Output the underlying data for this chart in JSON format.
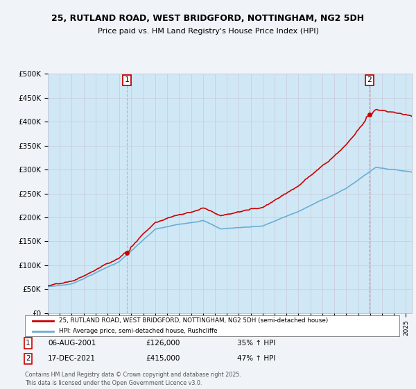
{
  "title_line1": "25, RUTLAND ROAD, WEST BRIDGFORD, NOTTINGHAM, NG2 5DH",
  "title_line2": "Price paid vs. HM Land Registry's House Price Index (HPI)",
  "ylim": [
    0,
    500000
  ],
  "yticks": [
    0,
    50000,
    100000,
    150000,
    200000,
    250000,
    300000,
    350000,
    400000,
    450000,
    500000
  ],
  "ytick_labels": [
    "£0",
    "£50K",
    "£100K",
    "£150K",
    "£200K",
    "£250K",
    "£300K",
    "£350K",
    "£400K",
    "£450K",
    "£500K"
  ],
  "sale1_date_num": 2001.6,
  "sale1_price": 126000,
  "sale1_date_str": "06-AUG-2001",
  "sale1_price_str": "£126,000",
  "sale1_hpi_str": "35% ↑ HPI",
  "sale2_date_num": 2021.96,
  "sale2_price": 415000,
  "sale2_date_str": "17-DEC-2021",
  "sale2_price_str": "£415,000",
  "sale2_hpi_str": "47% ↑ HPI",
  "property_color": "#cc0000",
  "hpi_color": "#6aaed6",
  "hpi_fill_color": "#d0e8f5",
  "vline_color": "#aaaacc",
  "legend_property": "25, RUTLAND ROAD, WEST BRIDGFORD, NOTTINGHAM, NG2 5DH (semi-detached house)",
  "legend_hpi": "HPI: Average price, semi-detached house, Rushcliffe",
  "footnote": "Contains HM Land Registry data © Crown copyright and database right 2025.\nThis data is licensed under the Open Government Licence v3.0.",
  "background_color": "#f0f4f8",
  "plot_bg_color": "#dce8f5"
}
